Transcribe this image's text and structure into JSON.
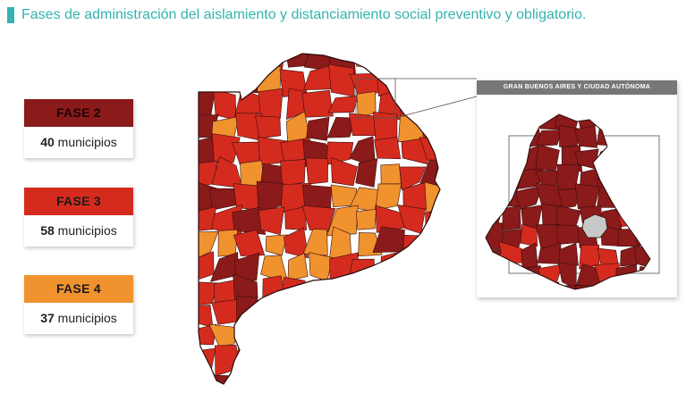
{
  "title": "Fases de administración del aislamiento y distanciamiento social preventivo y obligatorio.",
  "colors": {
    "accent": "#35b3b0",
    "fase2": "#8b1a1a",
    "fase3": "#d42b1e",
    "fase4": "#f0922e",
    "caba": "#c8c8c8",
    "border": "#3a0e0e"
  },
  "legend": [
    {
      "phase": "FASE 2",
      "count": "40",
      "unit": "municipios",
      "color": "#8b1a1a"
    },
    {
      "phase": "FASE 3",
      "count": "58",
      "unit": "municipios",
      "color": "#d42b1e"
    },
    {
      "phase": "FASE 4",
      "count": "37",
      "unit": "municipios",
      "color": "#f0922e"
    }
  ],
  "inset": {
    "header": "GRAN BUENOS AIRES Y CIUDAD AUTÓNOMA"
  }
}
